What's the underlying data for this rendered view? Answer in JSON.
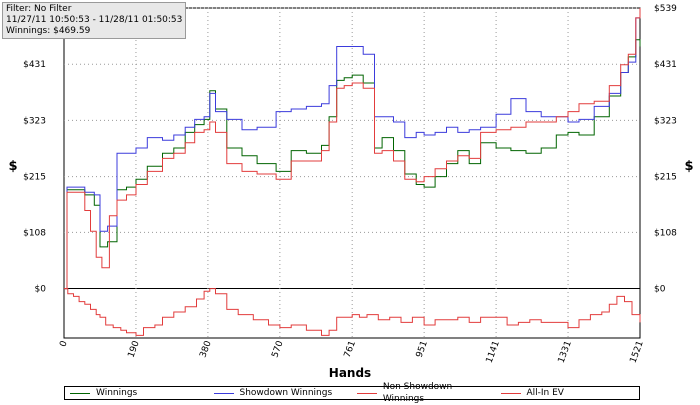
{
  "info": {
    "filter": "Filter: No Filter",
    "range": "11/27/11 10:50:53 - 11/28/11 01:50:53",
    "winnings": "Winnings: $469.59"
  },
  "legend": [
    {
      "label": "Winnings",
      "color": "#006400"
    },
    {
      "label": "Showdown Winnings",
      "color": "#3b3bdc"
    },
    {
      "label": "Non Showdown Winnings",
      "color": "#e23c3c"
    },
    {
      "label": "All-In EV",
      "color": "#e23c3c"
    }
  ],
  "chart_data": {
    "type": "line",
    "xlabel": "Hands",
    "ylabel": "$",
    "xlim": [
      0,
      1521
    ],
    "ylim": [
      -95,
      539
    ],
    "grid": true,
    "legend_placement": "bottom",
    "x_ticks": [
      0,
      190,
      380,
      570,
      761,
      951,
      1141,
      1331,
      1521
    ],
    "y_ticks": [
      0,
      108,
      215,
      323,
      431,
      539
    ],
    "y_tick_labels": [
      "$0",
      "$108",
      "$215",
      "$323",
      "$431",
      "$539"
    ],
    "series": [
      {
        "name": "Winnings",
        "color": "#006400",
        "x": [
          0,
          8,
          30,
          55,
          80,
          95,
          115,
          140,
          165,
          190,
          220,
          260,
          290,
          320,
          345,
          370,
          385,
          400,
          430,
          470,
          510,
          560,
          600,
          640,
          680,
          700,
          720,
          740,
          761,
          790,
          820,
          840,
          870,
          900,
          930,
          951,
          980,
          1010,
          1040,
          1070,
          1100,
          1141,
          1180,
          1220,
          1260,
          1300,
          1331,
          1360,
          1400,
          1440,
          1470,
          1490,
          1510,
          1521
        ],
        "y": [
          0,
          190,
          190,
          180,
          160,
          80,
          90,
          190,
          195,
          210,
          235,
          260,
          270,
          300,
          315,
          325,
          380,
          345,
          270,
          255,
          240,
          225,
          265,
          260,
          275,
          330,
          400,
          405,
          410,
          395,
          270,
          290,
          265,
          220,
          200,
          195,
          215,
          240,
          265,
          240,
          280,
          270,
          265,
          260,
          270,
          295,
          300,
          295,
          330,
          370,
          415,
          445,
          478,
          465
        ]
      },
      {
        "name": "Showdown Winnings",
        "color": "#3b3bdc",
        "x": [
          0,
          8,
          30,
          55,
          80,
          95,
          115,
          140,
          165,
          190,
          220,
          260,
          290,
          320,
          345,
          370,
          385,
          400,
          430,
          470,
          510,
          560,
          600,
          640,
          680,
          700,
          720,
          740,
          761,
          790,
          820,
          840,
          870,
          900,
          930,
          951,
          980,
          1010,
          1040,
          1070,
          1100,
          1141,
          1180,
          1220,
          1260,
          1300,
          1331,
          1360,
          1400,
          1440,
          1470,
          1490,
          1510,
          1521
        ],
        "y": [
          0,
          195,
          195,
          185,
          180,
          110,
          120,
          260,
          260,
          270,
          290,
          285,
          295,
          310,
          325,
          330,
          375,
          340,
          325,
          305,
          310,
          340,
          345,
          350,
          355,
          390,
          465,
          465,
          465,
          450,
          330,
          330,
          320,
          290,
          300,
          295,
          300,
          310,
          300,
          305,
          310,
          335,
          365,
          340,
          330,
          330,
          320,
          325,
          350,
          375,
          415,
          435,
          520,
          539
        ]
      },
      {
        "name": "Non Showdown Winnings",
        "color": "#e23c3c",
        "x": [
          0,
          10,
          25,
          40,
          55,
          70,
          85,
          95,
          110,
          130,
          150,
          165,
          190,
          210,
          240,
          260,
          290,
          320,
          350,
          370,
          385,
          400,
          430,
          460,
          500,
          540,
          570,
          600,
          640,
          680,
          700,
          720,
          761,
          780,
          800,
          830,
          860,
          890,
          920,
          951,
          980,
          1010,
          1040,
          1070,
          1100,
          1141,
          1170,
          1200,
          1230,
          1260,
          1300,
          1331,
          1360,
          1390,
          1420,
          1440,
          1460,
          1480,
          1500,
          1521
        ],
        "y": [
          0,
          -10,
          -15,
          -25,
          -30,
          -40,
          -50,
          -55,
          -70,
          -75,
          -80,
          -85,
          -90,
          -75,
          -70,
          -55,
          -45,
          -35,
          -20,
          -5,
          0,
          -10,
          -40,
          -50,
          -60,
          -70,
          -75,
          -70,
          -80,
          -90,
          -80,
          -55,
          -50,
          -55,
          -50,
          -60,
          -55,
          -65,
          -55,
          -70,
          -60,
          -60,
          -55,
          -65,
          -55,
          -55,
          -70,
          -65,
          -60,
          -65,
          -65,
          -75,
          -60,
          -50,
          -45,
          -30,
          -15,
          -25,
          -50,
          -65
        ]
      },
      {
        "name": "All-In EV",
        "color": "#e23c3c",
        "x": [
          0,
          8,
          30,
          55,
          70,
          85,
          100,
          120,
          140,
          165,
          190,
          220,
          260,
          290,
          320,
          345,
          370,
          385,
          400,
          430,
          470,
          510,
          560,
          600,
          640,
          680,
          700,
          720,
          740,
          761,
          790,
          820,
          840,
          870,
          900,
          930,
          951,
          980,
          1010,
          1040,
          1070,
          1100,
          1141,
          1180,
          1220,
          1260,
          1300,
          1331,
          1360,
          1400,
          1440,
          1470,
          1490,
          1510,
          1521
        ],
        "y": [
          0,
          185,
          185,
          150,
          110,
          60,
          40,
          140,
          170,
          180,
          200,
          225,
          250,
          260,
          280,
          300,
          305,
          320,
          300,
          240,
          225,
          220,
          210,
          245,
          245,
          265,
          320,
          385,
          390,
          395,
          385,
          260,
          265,
          245,
          210,
          205,
          215,
          230,
          245,
          255,
          250,
          300,
          305,
          310,
          320,
          320,
          330,
          340,
          355,
          360,
          390,
          430,
          450,
          520,
          539
        ]
      }
    ]
  }
}
